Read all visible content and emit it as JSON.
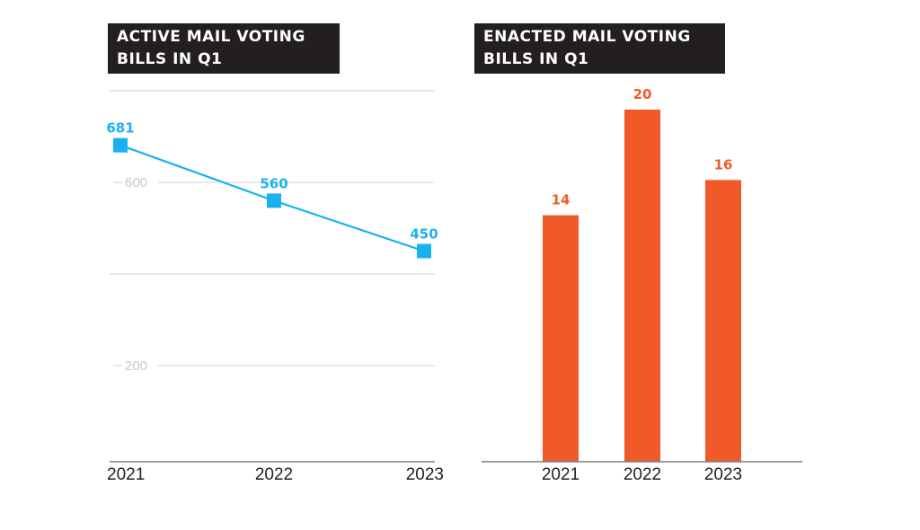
{
  "colors": {
    "line": "#1ab2ee",
    "bar": "#f05a28",
    "title_bg": "#231f20"
  },
  "chart_data": [
    {
      "type": "line",
      "title": "ACTIVE MAIL VOTING\nBILLS IN Q1",
      "x": [
        "2021",
        "2022",
        "2023"
      ],
      "values": [
        681,
        560,
        450
      ],
      "data_labels": [
        "681",
        "560",
        "450"
      ],
      "y_ticks": [
        {
          "value": 600,
          "label": "600"
        },
        {
          "value": 200,
          "label": "200"
        }
      ],
      "gridlines": [
        800,
        600,
        400,
        200
      ],
      "ylim": [
        0,
        800
      ],
      "grid": true,
      "marker": "square"
    },
    {
      "type": "bar",
      "title": "ENACTED MAIL VOTING\nBILLS IN Q1",
      "categories": [
        "2021",
        "2022",
        "2023"
      ],
      "values": [
        14,
        20,
        16
      ],
      "data_labels": [
        "14",
        "20",
        "16"
      ],
      "ylim": [
        0,
        20
      ],
      "grid": false
    }
  ]
}
